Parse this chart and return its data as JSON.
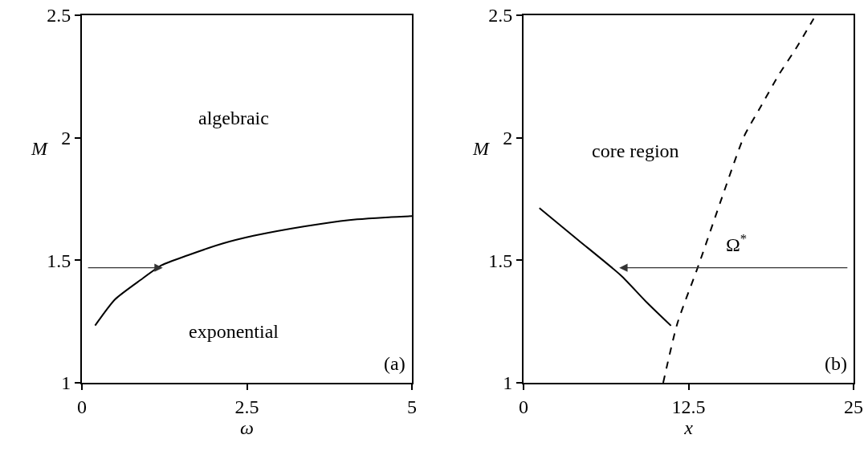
{
  "chart_data": [
    {
      "type": "line",
      "xlabel": "ω",
      "ylabel": "M",
      "xlim": [
        0,
        5
      ],
      "xticks": [
        0,
        2.5,
        5
      ],
      "ylim": [
        1,
        2.5
      ],
      "yticks": [
        1,
        1.5,
        2,
        2.5
      ],
      "annotations": [
        "algebraic",
        "exponential",
        "(a)"
      ],
      "series": [
        {
          "color": "#000000",
          "line_style": "solid",
          "x": [
            0.2,
            0.5,
            0.89,
            1.21,
            1.6,
            2.14,
            2.6,
            3.16,
            3.6,
            4.17,
            4.6,
            5.0
          ],
          "values": [
            1.234,
            1.34,
            1.42,
            1.48,
            1.52,
            1.569,
            1.6,
            1.629,
            1.648,
            1.667,
            1.675,
            1.68
          ]
        }
      ]
    },
    {
      "type": "line",
      "xlabel": "x",
      "ylabel": "M",
      "xlim": [
        0,
        25
      ],
      "xticks": [
        0,
        12.5,
        25
      ],
      "ylim": [
        1,
        2.5
      ],
      "yticks": [
        1,
        1.5,
        2,
        2.5
      ],
      "annotations": [
        "core region",
        "Ω$^{*}$",
        "(b)"
      ],
      "series": [
        {
          "color": "#000000",
          "line_style": "solid",
          "x": [
            1.2,
            4.2,
            7.38,
            9.3,
            11.17
          ],
          "values": [
            1.713,
            1.58,
            1.438,
            1.33,
            1.233
          ]
        },
        {
          "color": "#000000",
          "line_style": "dashed",
          "x": [
            10.58,
            11.64,
            13.26,
            15.09,
            16.7,
            18.0,
            19.34,
            20.7,
            21.98
          ],
          "values": [
            1.0,
            1.24,
            1.48,
            1.765,
            2.005,
            2.13,
            2.257,
            2.37,
            2.486
          ]
        }
      ]
    }
  ]
}
